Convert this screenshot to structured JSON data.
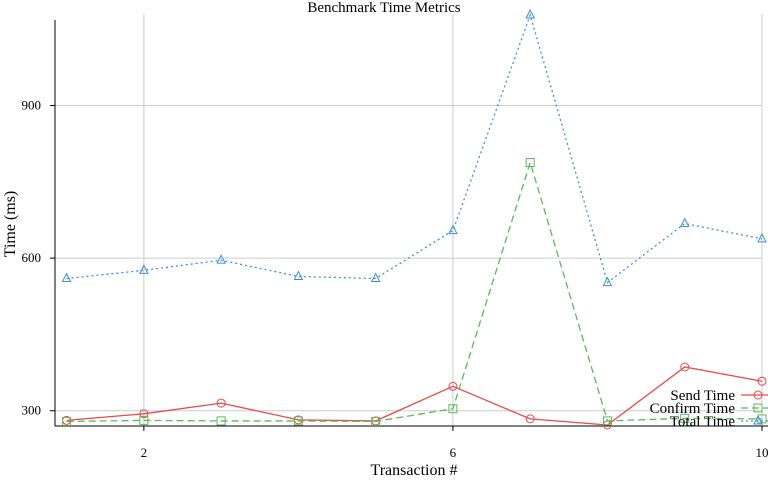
{
  "chart_data": {
    "type": "line",
    "title": "Benchmark Time Metrics",
    "xlabel": "Transaction #",
    "ylabel": "Time (ms)",
    "x": [
      1,
      2,
      3,
      4,
      5,
      6,
      7,
      8,
      9,
      10
    ],
    "xlim": [
      0.85,
      10
    ],
    "ylim": [
      270,
      1080
    ],
    "xticks": [
      2,
      6,
      10
    ],
    "xtick_labels": [
      "2",
      "6",
      "10"
    ],
    "yticks": [
      300,
      600,
      900
    ],
    "ytick_labels": [
      "300",
      "600",
      "900"
    ],
    "grid": true,
    "legend_position": "bottom-right",
    "series": [
      {
        "name": "Send Time",
        "color": "#e8494a",
        "dash": "solid",
        "marker": "circle",
        "values": [
          281,
          294,
          315,
          282,
          280,
          348,
          284,
          272,
          386,
          358
        ]
      },
      {
        "name": "Confirm Time",
        "color": "#5cb85c",
        "dash": "dashed",
        "marker": "square",
        "values": [
          279,
          281,
          280,
          280,
          279,
          304,
          788,
          280,
          285,
          284
        ]
      },
      {
        "name": "Total Time",
        "color": "#3b8fd9",
        "dash": "dotted",
        "marker": "triangle",
        "values": [
          560,
          576,
          596,
          564,
          560,
          654,
          1078,
          552,
          668,
          638
        ]
      }
    ]
  }
}
